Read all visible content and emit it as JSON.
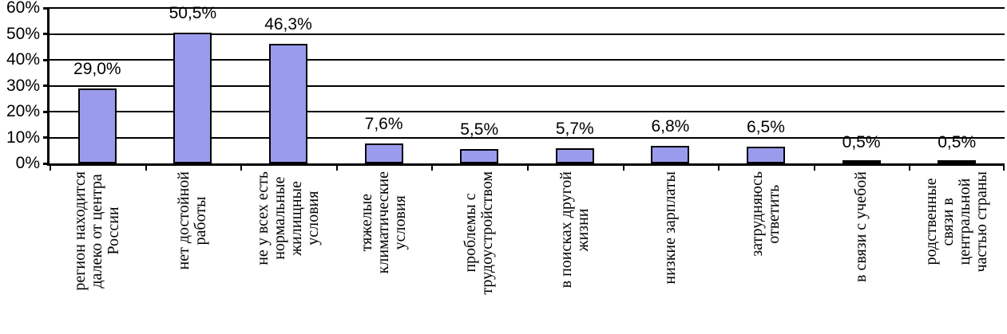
{
  "chart_data": {
    "type": "bar",
    "title": "",
    "xlabel": "",
    "ylabel": "",
    "ylim": [
      0,
      60
    ],
    "ytick_step": 10,
    "yticks": [
      "0%",
      "10%",
      "20%",
      "30%",
      "40%",
      "50%",
      "60%"
    ],
    "grid": true,
    "legend": "none",
    "bar_color": "#9B9BEE",
    "bar_border_color": "#000000",
    "categories": [
      "регион находится\nдалеко от центра\nРоссии",
      "нет достойной\nработы",
      "не у всех есть\nнормальные\nжилищные\nусловия",
      "тяжелые\nклиматические\nусловия",
      "проблемы с\nтрудоустройством",
      "в поисках другой\nжизни",
      "низкие зарплаты",
      "затрудняюсь\nответить",
      "в связи с учебой",
      "родственные\nсвязи в\nцентральной\nчастью страны"
    ],
    "values": [
      29.0,
      50.5,
      46.3,
      7.6,
      5.5,
      5.7,
      6.8,
      6.5,
      0.5,
      0.5
    ],
    "value_labels": [
      "29,0%",
      "50,5%",
      "46,3%",
      "7,6%",
      "5,5%",
      "5,7%",
      "6,8%",
      "6,5%",
      "0,5%",
      "0,5%"
    ]
  }
}
